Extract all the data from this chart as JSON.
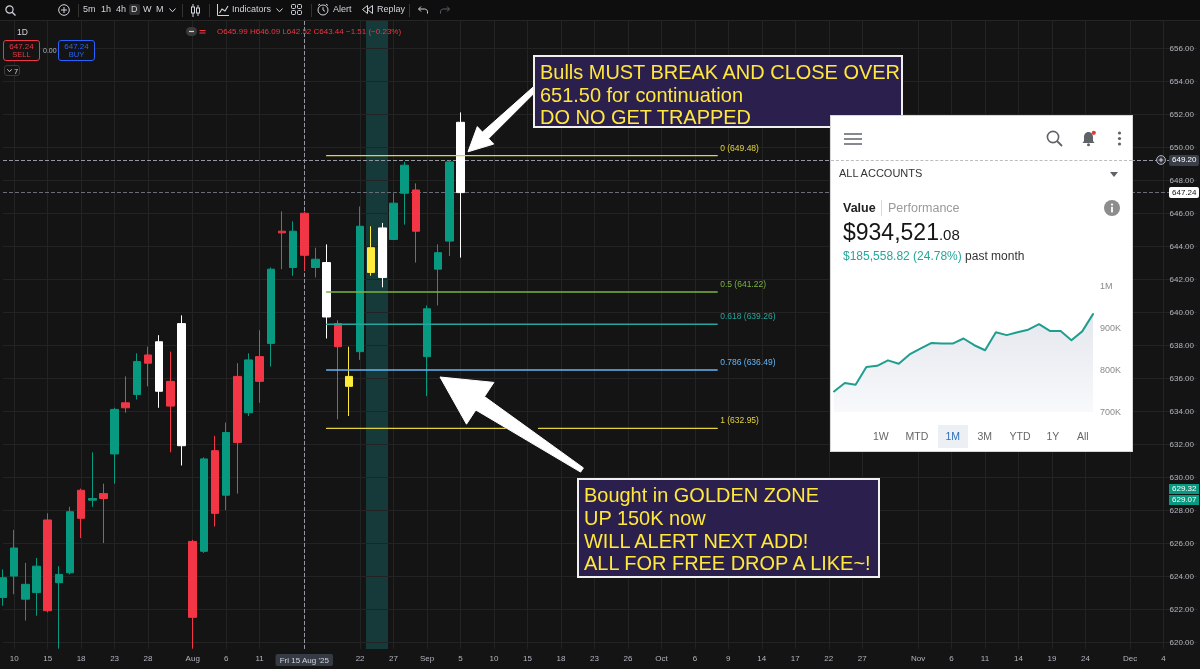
{
  "chart_data": [
    {
      "type": "candlestick",
      "categories": [
        null,
        "10",
        null,
        null,
        "15",
        null,
        null,
        "18",
        null,
        null,
        "23",
        null,
        null,
        "28",
        null,
        null,
        null,
        "Aug",
        null,
        null,
        "6",
        null,
        null,
        "11",
        null,
        null,
        null,
        "Fri 15 Aug '25",
        null,
        null,
        null,
        null,
        "22",
        null,
        null,
        "27",
        null,
        null,
        "Sep",
        null,
        null,
        "5",
        null,
        null,
        "10",
        null,
        null,
        "15",
        null,
        null,
        "18",
        null,
        null,
        "23",
        null,
        null,
        "26",
        null,
        null,
        "Oct",
        null,
        null,
        "6",
        null,
        null,
        "9",
        null,
        null,
        "14",
        null,
        null,
        "17",
        null,
        null,
        "22",
        null,
        null,
        "27",
        null,
        null,
        null,
        null,
        "Nov",
        null,
        null,
        "6",
        null,
        null,
        "11",
        null,
        null,
        "14",
        null,
        null,
        "19",
        null,
        null,
        "24",
        null,
        null,
        null,
        "Dec",
        null,
        null,
        "4",
        null,
        null,
        null
      ],
      "ohlc": [
        [
          622.7,
          624.4,
          622.2,
          623.9
        ],
        [
          624.0,
          626.8,
          622.9,
          625.7
        ],
        [
          622.6,
          624.8,
          621.3,
          623.5
        ],
        [
          623.0,
          625.1,
          621.6,
          624.6
        ],
        [
          627.4,
          627.8,
          621.8,
          621.9
        ],
        [
          623.6,
          624.6,
          619.6,
          624.1
        ],
        [
          624.2,
          628.2,
          624.1,
          627.9
        ],
        [
          629.2,
          629.3,
          626.3,
          627.5
        ],
        [
          628.6,
          631.5,
          628.2,
          628.7
        ],
        [
          629.0,
          629.6,
          626.0,
          628.7
        ],
        [
          631.4,
          634.2,
          629.6,
          634.1
        ],
        [
          634.5,
          636.1,
          633.9,
          634.2
        ],
        [
          635.0,
          637.5,
          634.7,
          637.0
        ],
        [
          637.4,
          637.9,
          635.5,
          636.9
        ],
        [
          638.2,
          638.6,
          634.2,
          635.2
        ],
        [
          635.8,
          637.6,
          631.5,
          634.3
        ],
        [
          639.3,
          639.8,
          630.7,
          631.9
        ],
        [
          626.1,
          626.2,
          619.6,
          621.5
        ],
        [
          625.5,
          631.2,
          625.4,
          631.1
        ],
        [
          631.6,
          632.5,
          627.0,
          627.8
        ],
        [
          628.9,
          633.3,
          628.0,
          632.7
        ],
        [
          636.1,
          636.9,
          629.0,
          632.1
        ],
        [
          633.9,
          637.5,
          633.7,
          637.1
        ],
        [
          637.3,
          638.9,
          634.5,
          635.8
        ],
        [
          638.1,
          642.7,
          636.7,
          642.6
        ],
        [
          644.9,
          646.1,
          642.6,
          644.8
        ],
        [
          642.7,
          645.5,
          642.2,
          644.9
        ],
        [
          645.99,
          646.09,
          642.52,
          643.44
        ],
        [
          642.7,
          643.9,
          642.1,
          643.2
        ],
        [
          643.0,
          644.1,
          638.4,
          639.7
        ],
        [
          639.3,
          639.5,
          633.5,
          637.9
        ],
        [
          636.1,
          637.9,
          633.7,
          635.5
        ],
        [
          637.6,
          646.4,
          637.1,
          645.2
        ],
        [
          643.9,
          645.2,
          642.2,
          642.4
        ],
        [
          642.1,
          645.4,
          641.5,
          645.1
        ],
        [
          644.4,
          647.2,
          644.4,
          646.6
        ],
        [
          647.2,
          649.1,
          645.3,
          648.9
        ],
        [
          647.4,
          647.8,
          643.0,
          644.9
        ],
        [
          637.3,
          640.4,
          634.9,
          640.2
        ],
        [
          642.6,
          644.1,
          640.4,
          643.6
        ],
        [
          644.3,
          649.2,
          643.4,
          649.1
        ],
        [
          651.5,
          652.1,
          643.3,
          647.24
        ],
        null,
        null,
        null,
        null,
        null,
        null,
        null,
        null,
        null,
        null,
        null,
        null,
        null,
        null,
        null,
        null,
        null,
        null,
        null,
        null,
        null,
        null,
        null,
        null,
        null,
        null,
        null,
        null,
        null,
        null,
        null,
        null,
        null,
        null,
        null,
        null,
        null,
        null,
        null,
        null,
        null,
        null,
        null,
        null,
        null,
        null,
        null,
        null,
        null,
        null,
        null,
        null,
        null,
        null,
        null,
        null,
        null,
        null,
        null,
        null,
        null,
        null,
        null,
        null,
        null,
        null
      ],
      "colors": [
        "#089981",
        "#089981",
        "#089981",
        "#089981",
        "#f23645",
        "#089981",
        "#089981",
        "#f23645",
        "#089981",
        "#f23645",
        "#089981",
        "#f23645",
        "#089981",
        "#f23645",
        "#ffffff",
        "#f23645",
        "#ffffff",
        "#f23645",
        "#089981",
        "#f23645",
        "#089981",
        "#f23645",
        "#089981",
        "#f23645",
        "#089981",
        "#f23645",
        "#089981",
        "#f23645",
        "#089981",
        "#ffffff",
        "#f23645",
        "#ffeb3b",
        "#089981",
        "#ffeb3b",
        "#ffffff",
        "#089981",
        "#089981",
        "#f23645",
        "#089981",
        "#089981",
        "#089981",
        "#ffffff",
        null,
        null,
        null,
        null,
        null,
        null,
        null,
        null,
        null,
        null,
        null,
        null,
        null,
        null,
        null,
        null,
        null,
        null,
        null,
        null,
        null,
        null,
        null,
        null,
        null,
        null,
        null,
        null,
        null,
        null,
        null,
        null,
        null,
        null,
        null,
        null,
        null,
        null,
        null,
        null,
        null,
        null,
        null,
        null,
        null,
        null,
        null,
        null,
        null,
        null,
        null,
        null,
        null,
        null,
        null,
        null,
        null,
        null,
        null,
        null,
        null,
        null,
        null,
        null,
        null,
        null
      ],
      "series": [
        {
          "type": "line",
          "name": "0 (649.48)",
          "color": "#e3d23e",
          "values": [
            null,
            null,
            null,
            null,
            null,
            null,
            null,
            null,
            null,
            null,
            null,
            null,
            null,
            null,
            null,
            null,
            null,
            null,
            null,
            null,
            null,
            null,
            null,
            null,
            null,
            null,
            null,
            null,
            null,
            649.48,
            649.48,
            649.48,
            649.48,
            649.48,
            649.48,
            649.48,
            649.48,
            649.48,
            649.48,
            649.48,
            649.48,
            649.48,
            649.48,
            649.48,
            649.48,
            649.48,
            649.48,
            649.48,
            649.48,
            649.48,
            649.48,
            649.48,
            649.48,
            649.48,
            649.48,
            649.48,
            649.48,
            649.48,
            649.48,
            649.48,
            649.48,
            649.48,
            649.48,
            649.48,
            649.48,
            null,
            null,
            null,
            null,
            null,
            null,
            null,
            null,
            null,
            null,
            null,
            null,
            null,
            null,
            null,
            null,
            null,
            null,
            null,
            null,
            null,
            null,
            null,
            null,
            null,
            null,
            null,
            null,
            null,
            null,
            null,
            null,
            null,
            null,
            null,
            null,
            null,
            null,
            null,
            null,
            null,
            null,
            null
          ]
        },
        {
          "type": "line",
          "name": "0.5 (641.22)",
          "color": "#7cb342",
          "values": [
            null,
            null,
            null,
            null,
            null,
            null,
            null,
            null,
            null,
            null,
            null,
            null,
            null,
            null,
            null,
            null,
            null,
            null,
            null,
            null,
            null,
            null,
            null,
            null,
            null,
            null,
            null,
            null,
            null,
            641.22,
            641.22,
            641.22,
            641.22,
            641.22,
            641.22,
            641.22,
            641.22,
            641.22,
            641.22,
            641.22,
            641.22,
            641.22,
            641.22,
            641.22,
            641.22,
            641.22,
            641.22,
            641.22,
            641.22,
            641.22,
            641.22,
            641.22,
            641.22,
            641.22,
            641.22,
            641.22,
            641.22,
            641.22,
            641.22,
            641.22,
            641.22,
            641.22,
            641.22,
            641.22,
            641.22,
            null,
            null,
            null,
            null,
            null,
            null,
            null,
            null,
            null,
            null,
            null,
            null,
            null,
            null,
            null,
            null,
            null,
            null,
            null,
            null,
            null,
            null,
            null,
            null,
            null,
            null,
            null,
            null,
            null,
            null,
            null,
            null,
            null,
            null,
            null,
            null,
            null,
            null,
            null,
            null,
            null,
            null,
            null
          ]
        },
        {
          "type": "line",
          "name": "0.618 (639.26)",
          "color": "#26a69a",
          "values": [
            null,
            null,
            null,
            null,
            null,
            null,
            null,
            null,
            null,
            null,
            null,
            null,
            null,
            null,
            null,
            null,
            null,
            null,
            null,
            null,
            null,
            null,
            null,
            null,
            null,
            null,
            null,
            null,
            null,
            639.26,
            639.26,
            639.26,
            639.26,
            639.26,
            639.26,
            639.26,
            639.26,
            639.26,
            639.26,
            639.26,
            639.26,
            639.26,
            639.26,
            639.26,
            639.26,
            639.26,
            639.26,
            639.26,
            639.26,
            639.26,
            639.26,
            639.26,
            639.26,
            639.26,
            639.26,
            639.26,
            639.26,
            639.26,
            639.26,
            639.26,
            639.26,
            639.26,
            639.26,
            639.26,
            639.26,
            null,
            null,
            null,
            null,
            null,
            null,
            null,
            null,
            null,
            null,
            null,
            null,
            null,
            null,
            null,
            null,
            null,
            null,
            null,
            null,
            null,
            null,
            null,
            null,
            null,
            null,
            null,
            null,
            null,
            null,
            null,
            null,
            null,
            null,
            null,
            null,
            null,
            null,
            null,
            null,
            null,
            null,
            null
          ]
        },
        {
          "type": "line",
          "name": "0.786 (636.49)",
          "color": "#64b5f6",
          "values": [
            null,
            null,
            null,
            null,
            null,
            null,
            null,
            null,
            null,
            null,
            null,
            null,
            null,
            null,
            null,
            null,
            null,
            null,
            null,
            null,
            null,
            null,
            null,
            null,
            null,
            null,
            null,
            null,
            null,
            636.49,
            636.49,
            636.49,
            636.49,
            636.49,
            636.49,
            636.49,
            636.49,
            636.49,
            636.49,
            636.49,
            636.49,
            636.49,
            636.49,
            636.49,
            636.49,
            636.49,
            636.49,
            636.49,
            636.49,
            636.49,
            636.49,
            636.49,
            636.49,
            636.49,
            636.49,
            636.49,
            636.49,
            636.49,
            636.49,
            636.49,
            636.49,
            636.49,
            636.49,
            636.49,
            636.49,
            null,
            null,
            null,
            null,
            null,
            null,
            null,
            null,
            null,
            null,
            null,
            null,
            null,
            null,
            null,
            null,
            null,
            null,
            null,
            null,
            null,
            null,
            null,
            null,
            null,
            null,
            null,
            null,
            null,
            null,
            null,
            null,
            null,
            null,
            null,
            null,
            null,
            null,
            null,
            null,
            null,
            null,
            null
          ]
        },
        {
          "type": "line",
          "name": "1 (632.95)",
          "color": "#e3d23e",
          "values": [
            null,
            null,
            null,
            null,
            null,
            null,
            null,
            null,
            null,
            null,
            null,
            null,
            null,
            null,
            null,
            null,
            null,
            null,
            null,
            null,
            null,
            null,
            null,
            null,
            null,
            null,
            null,
            null,
            null,
            632.95,
            632.95,
            632.95,
            632.95,
            632.95,
            632.95,
            632.95,
            632.95,
            632.95,
            632.95,
            632.95,
            632.95,
            632.95,
            632.95,
            632.95,
            632.95,
            632.95,
            null,
            null,
            632.95,
            632.95,
            632.95,
            632.95,
            632.95,
            632.95,
            632.95,
            632.95,
            632.95,
            632.95,
            632.95,
            632.95,
            632.95,
            632.95,
            632.95,
            632.95,
            632.95,
            null,
            null,
            null,
            null,
            null,
            null,
            null,
            null,
            null,
            null,
            null,
            null,
            null,
            null,
            null,
            null,
            null,
            null,
            null,
            null,
            null,
            null,
            null,
            null,
            null,
            null,
            null,
            null,
            null,
            null,
            null,
            null,
            null,
            null,
            null,
            null,
            null,
            null,
            null,
            null,
            null,
            null,
            null
          ]
        }
      ],
      "ref_lines": [
        {
          "axis": "x",
          "value": "Fri 15 Aug '25",
          "line_style": "dashed",
          "color": "#9598a1"
        },
        {
          "axis": "y",
          "value": 649.2,
          "label": "649.20",
          "line_style": "dashed",
          "color": "#9598a1"
        },
        {
          "axis": "y",
          "value": 647.24,
          "label": "647.24",
          "line_style": "dashed",
          "color": "#6a6d78"
        }
      ],
      "annotations": [
        "Bulls MUST BREAK AND CLOSE OVER\n651.50 for continuation\nDO NO GET TRAPPED",
        "Bought in GOLDEN ZONE\nUP 150K now\nWILL ALERT NEXT ADD!\nALL FOR FREE DROP A LIKE~!",
        "1D",
        "O645.99 H646.09 L642.52 C643.44 −1.51 (−0.23%)",
        "647.24",
        "SELL",
        "0.00",
        "647.24",
        "BUY",
        "7",
        "5m",
        "1h",
        "4h",
        "D",
        "W",
        "M",
        "Indicators",
        "Alert",
        "Replay",
        "629.32",
        "629.07"
      ],
      "ylim": [
        619.58,
        657.64
      ],
      "yticks": [
        {
          "value": 620,
          "label": "620.00"
        },
        {
          "value": 622,
          "label": "622.00"
        },
        {
          "value": 624,
          "label": "624.00"
        },
        {
          "value": 626,
          "label": "626.00"
        },
        {
          "value": 628,
          "label": "628.00"
        },
        {
          "value": 630,
          "label": "630.00"
        },
        {
          "value": 632,
          "label": "632.00"
        },
        {
          "value": 634,
          "label": "634.00"
        },
        {
          "value": 636,
          "label": "636.00"
        },
        {
          "value": 638,
          "label": "638.00"
        },
        {
          "value": 640,
          "label": "640.00"
        },
        {
          "value": 642,
          "label": "642.00"
        },
        {
          "value": 644,
          "label": "644.00"
        },
        {
          "value": 646,
          "label": "646.00"
        },
        {
          "value": 648,
          "label": "648.00"
        },
        {
          "value": 650,
          "label": "650.00"
        },
        {
          "value": 652,
          "label": "652.00"
        },
        {
          "value": 654,
          "label": "654.00"
        },
        {
          "value": 656,
          "label": "656.00"
        }
      ],
      "grid": true
    },
    {
      "type": "area",
      "title": "$934,521.08",
      "subtitle": "$185,558.82 (24.78%)",
      "categories": [
        null,
        null,
        null,
        null,
        null,
        null,
        null,
        null,
        null,
        null,
        null,
        null,
        null,
        null,
        null,
        null,
        null,
        null,
        null,
        null,
        null,
        null,
        null,
        null,
        null
      ],
      "series": [
        {
          "color": "#1f9e8e",
          "values": [
            749000,
            769000,
            765000,
            807000,
            810000,
            823000,
            815000,
            837000,
            851000,
            864000,
            863000,
            863000,
            875000,
            859000,
            847000,
            890000,
            883000,
            890000,
            896000,
            909000,
            893000,
            893000,
            871000,
            892000,
            933000
          ]
        }
      ],
      "ylim": [
        700000,
        1000000
      ],
      "yticks": [
        {
          "value": 700000,
          "label": "700K"
        },
        {
          "value": 800000,
          "label": "800K"
        },
        {
          "value": 900000,
          "label": "900K"
        },
        {
          "value": 1000000,
          "label": "1M"
        }
      ],
      "annotations": [
        "ALL ACCOUNTS",
        "Value",
        "Performance",
        "past month",
        "1W",
        "MTD",
        "1M",
        "3M",
        "YTD",
        "1Y",
        "All"
      ]
    }
  ]
}
